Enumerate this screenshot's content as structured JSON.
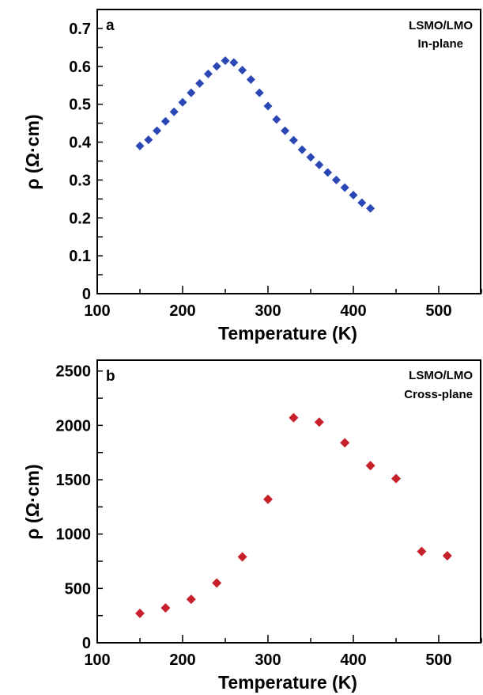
{
  "chart_data": [
    {
      "type": "scatter",
      "panel_label": "a",
      "annotation": [
        "LSMO/LMO",
        "In-plane"
      ],
      "xlabel": "Temperature (K)",
      "ylabel": "ρ (Ω·cm)",
      "xlim": [
        100,
        550
      ],
      "ylim": [
        0,
        0.75
      ],
      "xticks": [
        "100",
        "200",
        "300",
        "400",
        "500"
      ],
      "yticks": [
        "0",
        "0.1",
        "0.2",
        "0.3",
        "0.4",
        "0.5",
        "0.6",
        "0.7"
      ],
      "marker": "diamond",
      "color": "#2b47b5",
      "x": [
        150,
        160,
        170,
        180,
        190,
        200,
        210,
        220,
        230,
        240,
        250,
        260,
        270,
        280,
        290,
        300,
        310,
        320,
        330,
        340,
        350,
        360,
        370,
        380,
        390,
        400,
        410,
        420
      ],
      "y": [
        0.39,
        0.406,
        0.43,
        0.455,
        0.48,
        0.505,
        0.53,
        0.555,
        0.58,
        0.6,
        0.615,
        0.61,
        0.59,
        0.565,
        0.53,
        0.495,
        0.46,
        0.43,
        0.405,
        0.38,
        0.36,
        0.34,
        0.32,
        0.3,
        0.28,
        0.26,
        0.24,
        0.225
      ]
    },
    {
      "type": "scatter",
      "panel_label": "b",
      "annotation": [
        "LSMO/LMO",
        "Cross-plane"
      ],
      "xlabel": "Temperature (K)",
      "ylabel": "ρ (Ω·cm)",
      "xlim": [
        100,
        550
      ],
      "ylim": [
        0,
        2600
      ],
      "xticks": [
        "100",
        "200",
        "300",
        "400",
        "500"
      ],
      "yticks": [
        "0",
        "500",
        "1000",
        "1500",
        "2000",
        "2500"
      ],
      "marker": "diamond",
      "color": "#c8202a",
      "x": [
        150,
        180,
        210,
        240,
        270,
        300,
        330,
        360,
        390,
        420,
        450,
        480,
        510
      ],
      "y": [
        270,
        320,
        400,
        550,
        790,
        1320,
        2070,
        2030,
        1840,
        1630,
        1510,
        840,
        800
      ]
    }
  ]
}
